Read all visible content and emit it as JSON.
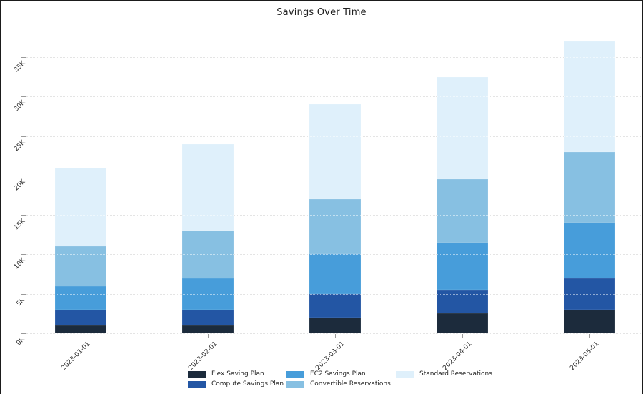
{
  "title": "Savings Over Time",
  "chart_data": {
    "type": "bar",
    "stacked": true,
    "title": "Savings Over Time",
    "xlabel": "",
    "ylabel": "",
    "grid": "dotted-horizontal",
    "legend_position": "bottom",
    "categories": [
      "2023-01-01",
      "2023-02-01",
      "2023-03-01",
      "2023-04-01",
      "2023-05-01"
    ],
    "series": [
      {
        "name": "Flex Saving Plan",
        "color": "#1c2b3c",
        "values": [
          1000,
          1000,
          2000,
          2500,
          3000
        ]
      },
      {
        "name": "Compute Savings Plan",
        "color": "#2356a4",
        "values": [
          2000,
          2000,
          3000,
          3000,
          4000
        ]
      },
      {
        "name": "EC2 Savings Plan",
        "color": "#479dda",
        "values": [
          3000,
          4000,
          5000,
          6000,
          7000
        ]
      },
      {
        "name": "Convertible Reservations",
        "color": "#87c0e2",
        "values": [
          5000,
          6000,
          7000,
          8000,
          9000
        ]
      },
      {
        "name": "Standard Reservations",
        "color": "#dff0fb",
        "values": [
          10000,
          11000,
          12000,
          13000,
          14000
        ]
      }
    ],
    "stack_totals": [
      21000,
      24000,
      29000,
      32500,
      37000
    ],
    "ylim": [
      0,
      37500
    ],
    "yticks": [
      {
        "value": 0,
        "label": "0K"
      },
      {
        "value": 5000,
        "label": "5K"
      },
      {
        "value": 10000,
        "label": "10K"
      },
      {
        "value": 15000,
        "label": "15K"
      },
      {
        "value": 20000,
        "label": "20K"
      },
      {
        "value": 25000,
        "label": "25K"
      },
      {
        "value": 30000,
        "label": "30K"
      },
      {
        "value": 35000,
        "label": "35K"
      }
    ],
    "legend_columns": [
      [
        "Flex Saving Plan",
        "Compute Savings Plan"
      ],
      [
        "EC2 Savings Plan",
        "Convertible Reservations"
      ],
      [
        "Standard Reservations"
      ]
    ]
  }
}
